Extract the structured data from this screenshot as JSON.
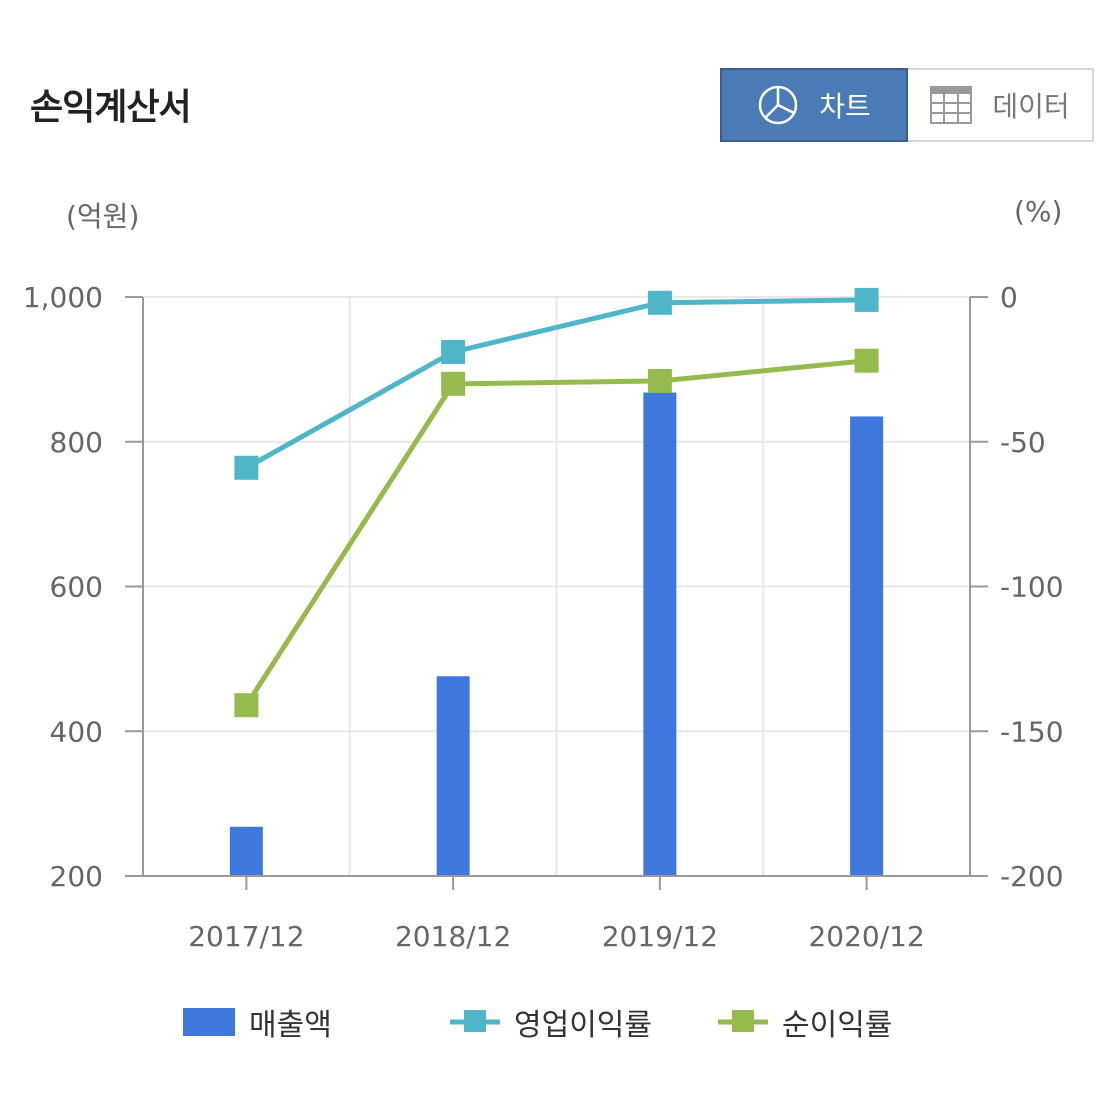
{
  "header": {
    "title": "손익계산서",
    "chart_label": "차트",
    "data_label": "데이터",
    "chart_icon": "pie-chart-icon",
    "data_icon": "table-grid-icon"
  },
  "colors": {
    "bar": "#3f78dc",
    "operating": "#4fb5c9",
    "net": "#95bb4f",
    "toggle_active": "#4a7bb7"
  },
  "chart_data": {
    "type": "bar",
    "left_unit": "(억원)",
    "right_unit": "(%)",
    "categories": [
      "2017/12",
      "2018/12",
      "2019/12",
      "2020/12"
    ],
    "left_axis": {
      "ylim": [
        200,
        1000
      ],
      "ticks": [
        200,
        400,
        600,
        800,
        1000
      ],
      "tick_labels": [
        "200",
        "400",
        "600",
        "800",
        "1,000"
      ]
    },
    "right_axis": {
      "ylim": [
        -200,
        0
      ],
      "ticks": [
        -200,
        -150,
        -100,
        -50,
        0
      ],
      "tick_labels": [
        "-200",
        "-150",
        "-100",
        "-50",
        "0"
      ]
    },
    "grid": true,
    "legend_position": "bottom",
    "series": [
      {
        "name": "매출액",
        "kind": "bar",
        "axis": "left",
        "values": [
          268,
          476,
          868,
          835
        ]
      },
      {
        "name": "영업이익률",
        "kind": "line",
        "axis": "right",
        "values": [
          -59,
          -19,
          -2,
          -1
        ]
      },
      {
        "name": "순이익률",
        "kind": "line",
        "axis": "right",
        "values": [
          -141,
          -30,
          -29,
          -22
        ]
      }
    ]
  }
}
